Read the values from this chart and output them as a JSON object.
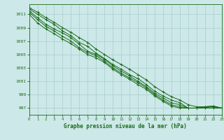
{
  "title": "Graphe pression niveau de la mer (hPa)",
  "background_color": "#cce8e8",
  "grid_color": "#aacccc",
  "line_color": "#1a6b1a",
  "xlim": [
    0,
    23
  ],
  "ylim": [
    996.0,
    1012.5
  ],
  "yticks": [
    997,
    999,
    1001,
    1003,
    1005,
    1007,
    1009,
    1011
  ],
  "xticks": [
    0,
    1,
    2,
    3,
    4,
    5,
    6,
    7,
    8,
    9,
    10,
    11,
    12,
    13,
    14,
    15,
    16,
    17,
    18,
    19,
    20,
    21,
    22,
    23
  ],
  "lines": [
    [
      1011.8,
      1011.0,
      1010.2,
      1009.5,
      1008.5,
      1007.8,
      1006.8,
      1006.2,
      1005.2,
      1004.4,
      1003.5,
      1002.8,
      1002.0,
      1001.4,
      1000.5,
      999.5,
      998.8,
      998.2,
      997.8,
      997.0,
      997.0,
      997.1,
      997.2,
      997.0
    ],
    [
      1011.5,
      1010.5,
      1009.5,
      1008.8,
      1008.2,
      1007.5,
      1006.5,
      1005.5,
      1005.0,
      1004.3,
      1003.3,
      1002.5,
      1001.8,
      1001.0,
      1000.2,
      999.2,
      998.5,
      997.8,
      997.5,
      997.0,
      997.0,
      997.2,
      997.3,
      997.0
    ],
    [
      1011.3,
      1010.2,
      1009.2,
      1008.5,
      1007.7,
      1007.0,
      1006.0,
      1005.3,
      1004.8,
      1004.0,
      1003.0,
      1002.2,
      1001.5,
      1000.8,
      1000.0,
      999.0,
      998.2,
      997.5,
      997.2,
      997.0,
      997.0,
      997.1,
      997.2,
      997.0
    ],
    [
      1011.0,
      1009.7,
      1008.8,
      1008.1,
      1007.3,
      1006.6,
      1005.8,
      1005.0,
      1004.5,
      1003.8,
      1002.8,
      1002.0,
      1001.3,
      1000.5,
      999.8,
      998.8,
      998.0,
      997.3,
      997.0,
      997.0,
      997.0,
      997.0,
      997.0,
      997.0
    ],
    [
      1012.0,
      1011.3,
      1010.5,
      1009.8,
      1009.0,
      1008.3,
      1007.5,
      1006.8,
      1005.8,
      1005.0,
      1004.2,
      1003.5,
      1002.8,
      1002.0,
      1001.2,
      1000.2,
      999.4,
      998.7,
      998.2,
      997.5,
      997.2,
      997.2,
      997.3,
      997.0
    ]
  ]
}
